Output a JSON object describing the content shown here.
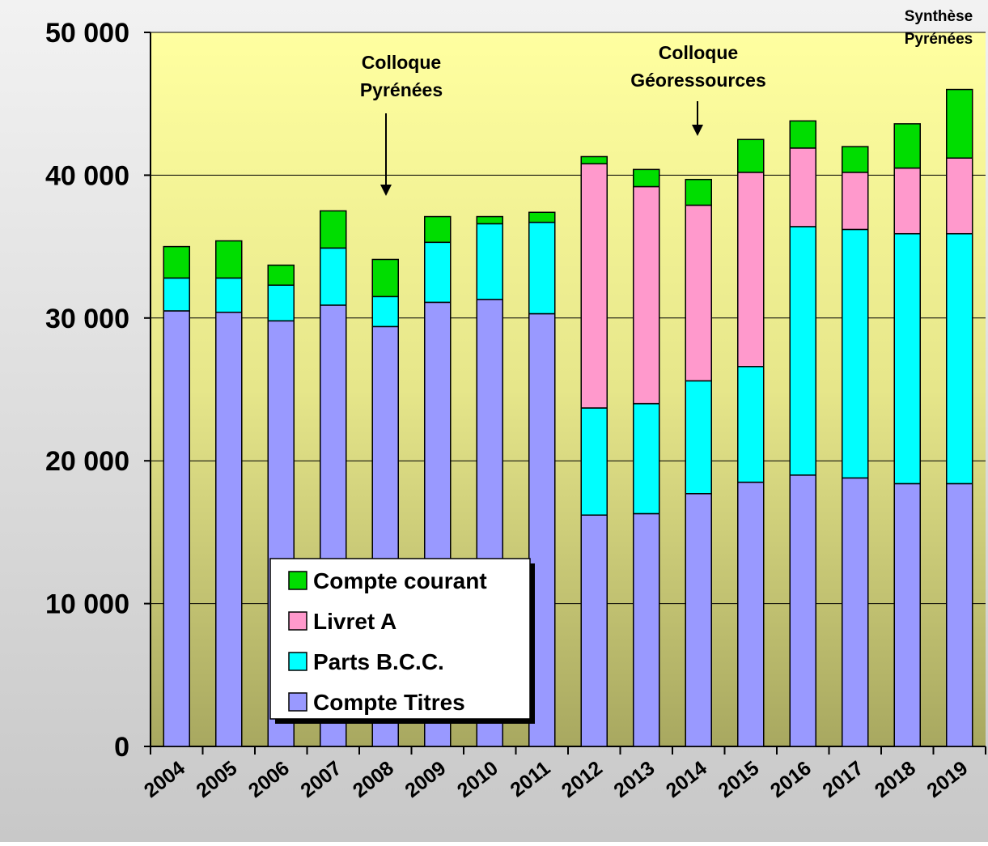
{
  "chart_data": {
    "type": "stacked-bar",
    "categories": [
      "2004",
      "2005",
      "2006",
      "2007",
      "2008",
      "2009",
      "2010",
      "2011",
      "2012",
      "2013",
      "2014",
      "2015",
      "2016",
      "2017",
      "2018",
      "2019"
    ],
    "series": [
      {
        "name": "Compte Titres",
        "color": "#9999ff",
        "values": [
          30500,
          30400,
          29800,
          30900,
          29400,
          31100,
          31300,
          30300,
          16200,
          16300,
          17700,
          18500,
          19000,
          18800,
          18400,
          18400
        ]
      },
      {
        "name": "Parts B.C.C.",
        "color": "#00ffff",
        "values": [
          2300,
          2400,
          2500,
          4000,
          2100,
          4200,
          5300,
          6400,
          7500,
          7700,
          7900,
          8100,
          17400,
          17400,
          17500,
          17500
        ]
      },
      {
        "name": "Livret A",
        "color": "#ff99cc",
        "values": [
          0,
          0,
          0,
          0,
          0,
          0,
          0,
          0,
          17100,
          15200,
          12300,
          13600,
          5500,
          4000,
          4600,
          5300
        ]
      },
      {
        "name": "Compte courant",
        "color": "#00dd00",
        "values": [
          2200,
          2600,
          1400,
          2600,
          2600,
          1800,
          500,
          700,
          500,
          1200,
          1800,
          2300,
          1900,
          1800,
          3100,
          4800
        ]
      }
    ],
    "ylim": [
      0,
      50000
    ],
    "yticks": [
      0,
      {
        "value": 10000,
        "label": "10 000"
      },
      {
        "value": 20000,
        "label": "20 000"
      },
      {
        "value": 30000,
        "label": "30 000"
      },
      {
        "value": 40000,
        "label": "40 000"
      },
      {
        "value": 50000,
        "label": "50 000"
      }
    ],
    "grid": true,
    "annotations": [
      {
        "lines": [
          "Colloque",
          "Pyrénées"
        ]
      },
      {
        "lines": [
          "Colloque",
          "Géoressources"
        ]
      },
      {
        "lines": [
          "Synthèse",
          "Pyrénées"
        ]
      }
    ]
  }
}
